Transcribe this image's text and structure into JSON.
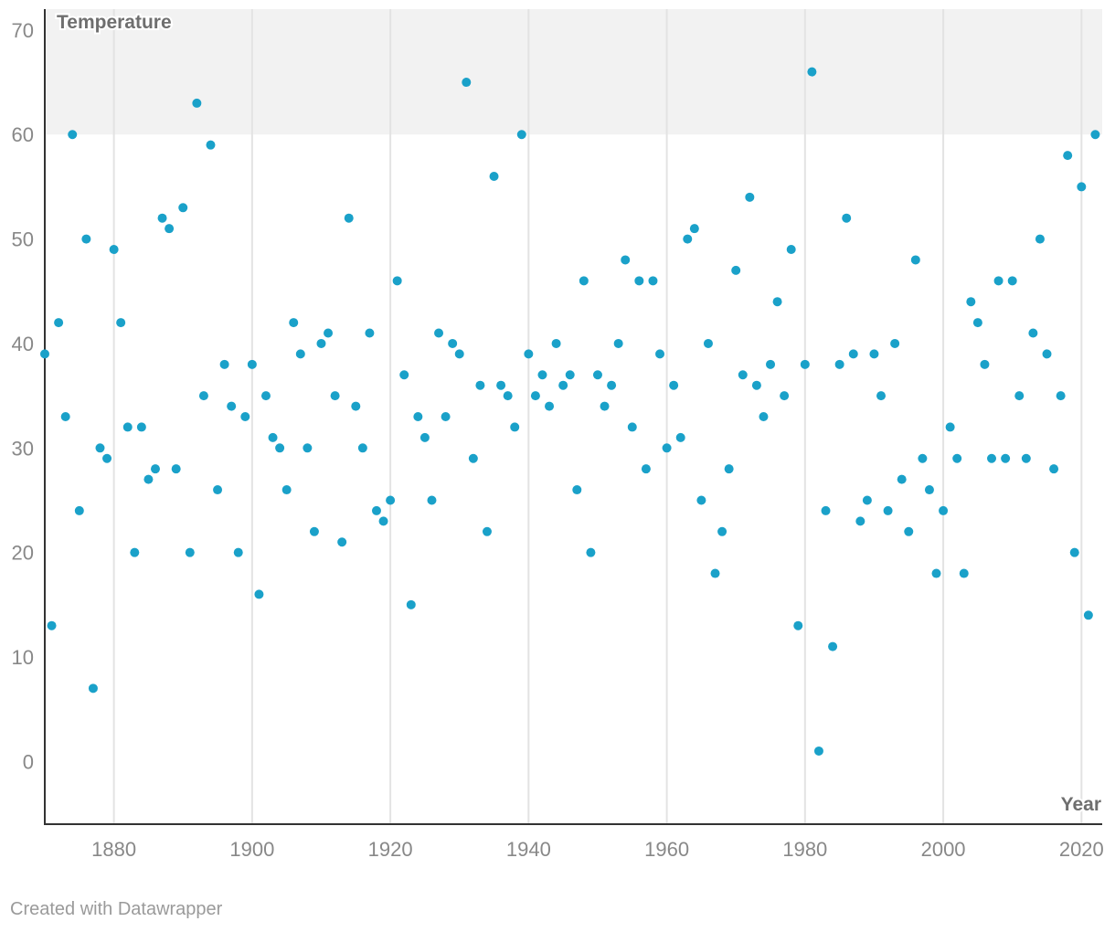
{
  "chart_data": {
    "type": "scatter",
    "title": "",
    "xlabel": "Year",
    "ylabel": "Temperature",
    "xlim": [
      1870,
      2023
    ],
    "ylim": [
      -6,
      72
    ],
    "x_ticks": [
      1880,
      1900,
      1920,
      1940,
      1960,
      1980,
      2000,
      2020
    ],
    "y_ticks": [
      0,
      10,
      20,
      30,
      40,
      50,
      60,
      70
    ],
    "highlight_band": [
      60,
      72
    ],
    "grid": "vertical",
    "marker_color": "#1aa1c9",
    "band_color": "#f2f2f2",
    "series": [
      {
        "name": "Temperature",
        "points": [
          [
            1870,
            39
          ],
          [
            1871,
            13
          ],
          [
            1872,
            42
          ],
          [
            1873,
            33
          ],
          [
            1874,
            60
          ],
          [
            1875,
            24
          ],
          [
            1876,
            50
          ],
          [
            1877,
            7
          ],
          [
            1878,
            30
          ],
          [
            1879,
            29
          ],
          [
            1880,
            49
          ],
          [
            1881,
            42
          ],
          [
            1882,
            32
          ],
          [
            1883,
            20
          ],
          [
            1884,
            32
          ],
          [
            1885,
            27
          ],
          [
            1886,
            28
          ],
          [
            1887,
            52
          ],
          [
            1888,
            51
          ],
          [
            1889,
            28
          ],
          [
            1890,
            53
          ],
          [
            1891,
            20
          ],
          [
            1892,
            63
          ],
          [
            1893,
            35
          ],
          [
            1894,
            59
          ],
          [
            1895,
            26
          ],
          [
            1896,
            38
          ],
          [
            1897,
            34
          ],
          [
            1898,
            20
          ],
          [
            1899,
            33
          ],
          [
            1900,
            38
          ],
          [
            1901,
            16
          ],
          [
            1902,
            35
          ],
          [
            1903,
            31
          ],
          [
            1904,
            30
          ],
          [
            1905,
            26
          ],
          [
            1906,
            42
          ],
          [
            1907,
            39
          ],
          [
            1908,
            30
          ],
          [
            1909,
            22
          ],
          [
            1910,
            40
          ],
          [
            1911,
            41
          ],
          [
            1912,
            35
          ],
          [
            1913,
            21
          ],
          [
            1914,
            52
          ],
          [
            1915,
            34
          ],
          [
            1916,
            30
          ],
          [
            1917,
            41
          ],
          [
            1918,
            24
          ],
          [
            1919,
            23
          ],
          [
            1920,
            25
          ],
          [
            1921,
            46
          ],
          [
            1922,
            37
          ],
          [
            1923,
            15
          ],
          [
            1924,
            33
          ],
          [
            1925,
            31
          ],
          [
            1926,
            25
          ],
          [
            1927,
            41
          ],
          [
            1928,
            33
          ],
          [
            1929,
            40
          ],
          [
            1930,
            39
          ],
          [
            1931,
            65
          ],
          [
            1932,
            29
          ],
          [
            1933,
            36
          ],
          [
            1934,
            22
          ],
          [
            1935,
            56
          ],
          [
            1936,
            36
          ],
          [
            1937,
            35
          ],
          [
            1938,
            32
          ],
          [
            1939,
            60
          ],
          [
            1940,
            39
          ],
          [
            1941,
            35
          ],
          [
            1942,
            37
          ],
          [
            1943,
            34
          ],
          [
            1944,
            40
          ],
          [
            1945,
            36
          ],
          [
            1946,
            37
          ],
          [
            1947,
            26
          ],
          [
            1948,
            46
          ],
          [
            1949,
            20
          ],
          [
            1950,
            37
          ],
          [
            1951,
            34
          ],
          [
            1952,
            36
          ],
          [
            1953,
            40
          ],
          [
            1954,
            48
          ],
          [
            1955,
            32
          ],
          [
            1956,
            46
          ],
          [
            1957,
            28
          ],
          [
            1958,
            46
          ],
          [
            1959,
            39
          ],
          [
            1960,
            30
          ],
          [
            1961,
            36
          ],
          [
            1962,
            31
          ],
          [
            1963,
            50
          ],
          [
            1964,
            51
          ],
          [
            1965,
            25
          ],
          [
            1966,
            40
          ],
          [
            1967,
            18
          ],
          [
            1968,
            22
          ],
          [
            1969,
            28
          ],
          [
            1970,
            47
          ],
          [
            1971,
            37
          ],
          [
            1972,
            54
          ],
          [
            1973,
            36
          ],
          [
            1974,
            33
          ],
          [
            1975,
            38
          ],
          [
            1976,
            44
          ],
          [
            1977,
            35
          ],
          [
            1978,
            49
          ],
          [
            1979,
            13
          ],
          [
            1980,
            38
          ],
          [
            1981,
            66
          ],
          [
            1982,
            1
          ],
          [
            1983,
            24
          ],
          [
            1984,
            11
          ],
          [
            1985,
            38
          ],
          [
            1986,
            52
          ],
          [
            1987,
            39
          ],
          [
            1988,
            23
          ],
          [
            1989,
            25
          ],
          [
            1990,
            39
          ],
          [
            1991,
            35
          ],
          [
            1992,
            24
          ],
          [
            1993,
            40
          ],
          [
            1994,
            27
          ],
          [
            1995,
            22
          ],
          [
            1996,
            48
          ],
          [
            1997,
            29
          ],
          [
            1998,
            26
          ],
          [
            1999,
            18
          ],
          [
            2000,
            24
          ],
          [
            2001,
            32
          ],
          [
            2002,
            29
          ],
          [
            2003,
            18
          ],
          [
            2004,
            44
          ],
          [
            2005,
            42
          ],
          [
            2006,
            38
          ],
          [
            2007,
            29
          ],
          [
            2008,
            46
          ],
          [
            2009,
            29
          ],
          [
            2010,
            46
          ],
          [
            2011,
            35
          ],
          [
            2012,
            29
          ],
          [
            2013,
            41
          ],
          [
            2014,
            50
          ],
          [
            2015,
            39
          ],
          [
            2016,
            28
          ],
          [
            2017,
            35
          ],
          [
            2018,
            58
          ],
          [
            2019,
            20
          ],
          [
            2020,
            55
          ],
          [
            2021,
            14
          ],
          [
            2022,
            60
          ]
        ]
      }
    ]
  },
  "footer": {
    "credit": "Created with Datawrapper"
  }
}
